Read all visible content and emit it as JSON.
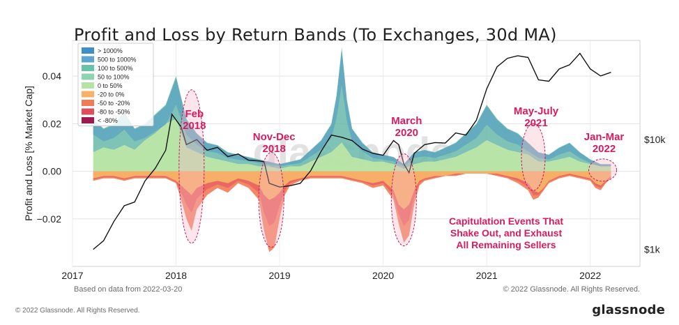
{
  "page": {
    "footer_left": "© 2022 Glassnode. All Rights Reserved.",
    "brand": "glassnode"
  },
  "chart_data": {
    "type": "area",
    "title": "Profit and Loss by Return Bands (To Exchanges, 30d MA)",
    "ylabel": "Profit and Loss [% Market Cap]",
    "xlabel": "",
    "ylim": [
      -0.04,
      0.055
    ],
    "x_ticks": [
      "2017",
      "2018",
      "2019",
      "2020",
      "2021",
      "2022"
    ],
    "y_ticks": [
      {
        "value": 0.04,
        "label": "0.04"
      },
      {
        "value": 0.02,
        "label": "0.02"
      },
      {
        "value": 0.0,
        "label": "0.00"
      },
      {
        "value": -0.02,
        "label": "−0.02"
      }
    ],
    "price_axis": {
      "scale": "log",
      "labels": [
        {
          "value": 10000,
          "label": "$10k"
        },
        {
          "value": 1000,
          "label": "$1k"
        }
      ]
    },
    "grid": true,
    "watermark": "glassnode",
    "note_left": "Based on data from 2022-03-20",
    "note_right": "© 2022 Glassnode. All Rights Reserved.",
    "legend": {
      "placement": "top-left",
      "entries": [
        {
          "label": "> 1000%",
          "color": "#3f8fc4"
        },
        {
          "label": "500 to 1000%",
          "color": "#5ba6cf"
        },
        {
          "label": "100 to 500%",
          "color": "#67c2a8"
        },
        {
          "label": "50 to 100%",
          "color": "#8fd3b0"
        },
        {
          "label": "0 to 50%",
          "color": "#b5e3a3"
        },
        {
          "label": "-20 to 0%",
          "color": "#f7b267"
        },
        {
          "label": "-50 to -20%",
          "color": "#f27a55"
        },
        {
          "label": "-80 to -50%",
          "color": "#e04e5c"
        },
        {
          "label": "< -80%",
          "color": "#a1174e"
        }
      ]
    },
    "profit_series": {
      "x": [
        2017.2,
        2017.3,
        2017.4,
        2017.5,
        2017.6,
        2017.7,
        2017.8,
        2017.9,
        2018.0,
        2018.1,
        2018.2,
        2018.3,
        2018.4,
        2018.5,
        2018.6,
        2018.7,
        2018.8,
        2018.9,
        2019.0,
        2019.1,
        2019.2,
        2019.3,
        2019.4,
        2019.5,
        2019.55,
        2019.6,
        2019.65,
        2019.7,
        2019.8,
        2019.9,
        2020.0,
        2020.1,
        2020.2,
        2020.3,
        2020.4,
        2020.5,
        2020.6,
        2020.7,
        2020.8,
        2020.9,
        2021.0,
        2021.1,
        2021.2,
        2021.3,
        2021.4,
        2021.5,
        2021.6,
        2021.7,
        2021.8,
        2021.9,
        2022.0,
        2022.1,
        2022.2
      ],
      "lower": [
        0.008,
        0.01,
        0.009,
        0.011,
        0.009,
        0.013,
        0.016,
        0.02,
        0.022,
        0.01,
        0.008,
        0.006,
        0.005,
        0.004,
        0.003,
        0.003,
        0.002,
        0.002,
        0.001,
        0.002,
        0.002,
        0.004,
        0.006,
        0.008,
        0.01,
        0.012,
        0.009,
        0.006,
        0.005,
        0.004,
        0.004,
        0.003,
        0.001,
        0.003,
        0.004,
        0.004,
        0.005,
        0.006,
        0.008,
        0.01,
        0.013,
        0.011,
        0.009,
        0.008,
        0.007,
        0.004,
        0.004,
        0.005,
        0.006,
        0.004,
        0.003,
        0.002,
        0.002
      ],
      "upper": [
        0.022,
        0.018,
        0.02,
        0.025,
        0.018,
        0.02,
        0.024,
        0.028,
        0.04,
        0.022,
        0.016,
        0.012,
        0.011,
        0.008,
        0.007,
        0.006,
        0.005,
        0.004,
        0.003,
        0.004,
        0.005,
        0.009,
        0.013,
        0.02,
        0.032,
        0.052,
        0.03,
        0.018,
        0.012,
        0.008,
        0.007,
        0.006,
        0.003,
        0.008,
        0.009,
        0.008,
        0.01,
        0.012,
        0.016,
        0.02,
        0.028,
        0.022,
        0.018,
        0.016,
        0.012,
        0.008,
        0.007,
        0.01,
        0.012,
        0.008,
        0.005,
        0.003,
        0.003
      ]
    },
    "loss_series": {
      "x": [
        2017.2,
        2017.3,
        2017.4,
        2017.5,
        2017.6,
        2017.7,
        2017.8,
        2017.9,
        2018.0,
        2018.05,
        2018.1,
        2018.15,
        2018.2,
        2018.3,
        2018.4,
        2018.5,
        2018.6,
        2018.7,
        2018.8,
        2018.85,
        2018.9,
        2018.95,
        2019.0,
        2019.05,
        2019.1,
        2019.2,
        2019.3,
        2019.4,
        2019.5,
        2019.6,
        2019.7,
        2019.8,
        2019.9,
        2020.0,
        2020.1,
        2020.15,
        2020.2,
        2020.25,
        2020.3,
        2020.35,
        2020.4,
        2020.5,
        2020.6,
        2020.7,
        2020.8,
        2020.9,
        2021.0,
        2021.1,
        2021.2,
        2021.3,
        2021.4,
        2021.45,
        2021.5,
        2021.55,
        2021.6,
        2021.7,
        2021.8,
        2021.9,
        2022.0,
        2022.05,
        2022.1,
        2022.15,
        2022.2
      ],
      "orange": [
        -0.003,
        -0.002,
        -0.002,
        -0.003,
        -0.002,
        -0.002,
        -0.002,
        -0.002,
        -0.004,
        -0.006,
        -0.008,
        -0.01,
        -0.007,
        -0.005,
        -0.004,
        -0.005,
        -0.003,
        -0.004,
        -0.006,
        -0.01,
        -0.012,
        -0.011,
        -0.009,
        -0.006,
        -0.004,
        -0.003,
        -0.002,
        -0.002,
        -0.002,
        -0.002,
        -0.003,
        -0.004,
        -0.005,
        -0.004,
        -0.008,
        -0.014,
        -0.016,
        -0.014,
        -0.008,
        -0.004,
        -0.003,
        -0.002,
        -0.002,
        -0.001,
        -0.001,
        -0.001,
        -0.001,
        -0.001,
        -0.002,
        -0.003,
        -0.005,
        -0.008,
        -0.009,
        -0.007,
        -0.004,
        -0.002,
        -0.001,
        -0.002,
        -0.003,
        -0.005,
        -0.006,
        -0.004,
        -0.002
      ],
      "deep": [
        -0.004,
        -0.003,
        -0.003,
        -0.004,
        -0.003,
        -0.003,
        -0.003,
        -0.003,
        -0.005,
        -0.012,
        -0.02,
        -0.025,
        -0.016,
        -0.01,
        -0.007,
        -0.009,
        -0.005,
        -0.007,
        -0.012,
        -0.025,
        -0.034,
        -0.032,
        -0.02,
        -0.01,
        -0.006,
        -0.004,
        -0.003,
        -0.003,
        -0.003,
        -0.003,
        -0.004,
        -0.005,
        -0.007,
        -0.006,
        -0.012,
        -0.022,
        -0.03,
        -0.027,
        -0.014,
        -0.006,
        -0.004,
        -0.003,
        -0.002,
        -0.002,
        -0.001,
        -0.001,
        -0.001,
        -0.002,
        -0.003,
        -0.005,
        -0.008,
        -0.012,
        -0.011,
        -0.008,
        -0.005,
        -0.003,
        -0.002,
        -0.003,
        -0.004,
        -0.007,
        -0.008,
        -0.005,
        -0.003
      ]
    },
    "price_line": {
      "x": [
        2017.2,
        2017.3,
        2017.4,
        2017.5,
        2017.6,
        2017.7,
        2017.8,
        2017.9,
        2017.96,
        2018.05,
        2018.1,
        2018.2,
        2018.3,
        2018.4,
        2018.5,
        2018.6,
        2018.7,
        2018.8,
        2018.85,
        2018.9,
        2019.0,
        2019.1,
        2019.2,
        2019.3,
        2019.4,
        2019.5,
        2019.6,
        2019.7,
        2019.8,
        2019.9,
        2020.0,
        2020.1,
        2020.15,
        2020.2,
        2020.25,
        2020.3,
        2020.4,
        2020.5,
        2020.6,
        2020.7,
        2020.8,
        2020.9,
        2021.0,
        2021.1,
        2021.2,
        2021.3,
        2021.4,
        2021.5,
        2021.6,
        2021.7,
        2021.8,
        2021.9,
        2022.0,
        2022.1,
        2022.2
      ],
      "price": [
        1000,
        1200,
        1800,
        2500,
        2700,
        4200,
        5500,
        8000,
        17000,
        13000,
        9000,
        10000,
        8000,
        8500,
        7000,
        7400,
        6500,
        6400,
        6300,
        4000,
        3700,
        3800,
        4000,
        5200,
        7800,
        11000,
        10500,
        9800,
        8200,
        7500,
        7200,
        9800,
        9000,
        6000,
        5000,
        7500,
        9000,
        9400,
        9300,
        11500,
        11000,
        15000,
        29000,
        46000,
        55000,
        58000,
        56000,
        35000,
        34000,
        44000,
        48000,
        61000,
        44000,
        38000,
        41000
      ]
    },
    "annotations": [
      {
        "label": [
          "Feb",
          "2018"
        ],
        "x": 2018.15
      },
      {
        "label": [
          "Nov-Dec",
          "2018"
        ],
        "x": 2018.92
      },
      {
        "label": [
          "March",
          "2020"
        ],
        "x": 2020.2
      },
      {
        "label": [
          "May-July",
          "2021"
        ],
        "x": 2021.45
      },
      {
        "label": [
          "Jan-Mar",
          "2022"
        ],
        "x": 2022.12
      }
    ],
    "callout": [
      "Capitulation Events That",
      "Shake Out, and Exhaust",
      "All Remaining Sellers"
    ]
  }
}
